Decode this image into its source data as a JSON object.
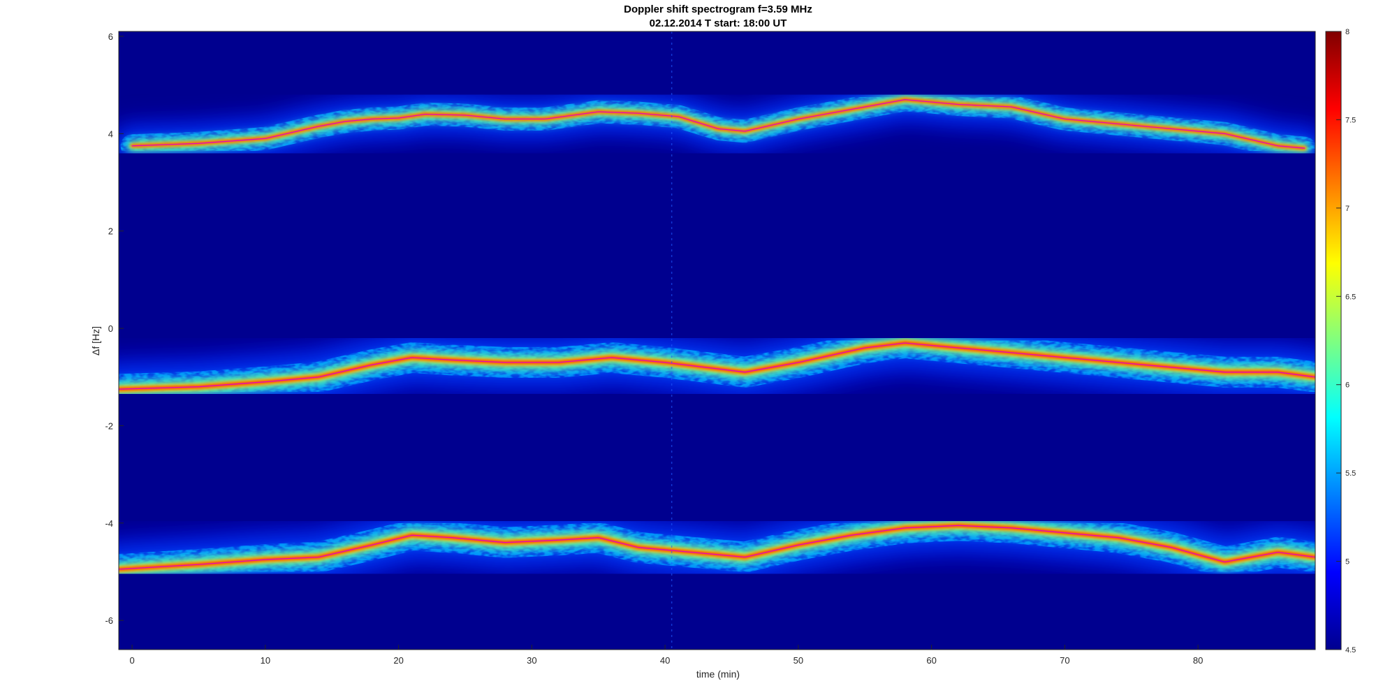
{
  "chart_data": {
    "type": "heatmap",
    "title": "Doppler shift spectrogram f=3.59 MHz",
    "subtitle": "02.12.2014   T start: 18:00 UT",
    "xlabel": "time (min)",
    "ylabel": "Δf [Hz]",
    "xlim": [
      -1,
      88.8
    ],
    "ylim": [
      -6.6,
      6.1
    ],
    "x_ticks": [
      0,
      10,
      20,
      30,
      40,
      50,
      60,
      70,
      80
    ],
    "y_ticks": [
      6,
      4,
      2,
      0,
      -2,
      -4,
      -6
    ],
    "colorbar": {
      "colormap": "jet",
      "clim": [
        4.5,
        8
      ],
      "ticks": [
        "8",
        "7.5",
        "7",
        "6.5",
        "6",
        "5.5",
        "5",
        "4.5"
      ]
    },
    "background_color": "#00008f",
    "series": [
      {
        "x": [
          0,
          5,
          10,
          14,
          16,
          18,
          20,
          22,
          25,
          28,
          31,
          35,
          38,
          41,
          44,
          46,
          50,
          54,
          58,
          62,
          66,
          70,
          74,
          78,
          82,
          86,
          88
        ],
        "y": [
          3.75,
          3.8,
          3.9,
          4.15,
          4.25,
          4.3,
          4.32,
          4.4,
          4.38,
          4.3,
          4.3,
          4.45,
          4.42,
          4.35,
          4.1,
          4.05,
          4.3,
          4.5,
          4.7,
          4.6,
          4.55,
          4.3,
          4.2,
          4.1,
          4.0,
          3.75,
          3.7
        ]
      },
      {
        "x": [
          -1,
          5,
          10,
          14,
          18,
          21,
          24,
          28,
          32,
          36,
          40,
          43,
          46,
          50,
          55,
          58,
          62,
          66,
          70,
          74,
          78,
          82,
          86,
          88.8
        ],
        "y": [
          -1.25,
          -1.2,
          -1.1,
          -1.0,
          -0.75,
          -0.6,
          -0.65,
          -0.7,
          -0.7,
          -0.6,
          -0.7,
          -0.8,
          -0.9,
          -0.7,
          -0.4,
          -0.3,
          -0.4,
          -0.5,
          -0.6,
          -0.7,
          -0.8,
          -0.9,
          -0.9,
          -1.0
        ]
      },
      {
        "x": [
          -1,
          5,
          10,
          14,
          18,
          21,
          24,
          28,
          32,
          35,
          38,
          42,
          46,
          50,
          54,
          58,
          62,
          66,
          70,
          74,
          78,
          82,
          86,
          88.8
        ],
        "y": [
          -4.95,
          -4.85,
          -4.75,
          -4.7,
          -4.45,
          -4.25,
          -4.3,
          -4.4,
          -4.35,
          -4.3,
          -4.5,
          -4.6,
          -4.7,
          -4.45,
          -4.25,
          -4.1,
          -4.05,
          -4.1,
          -4.2,
          -4.3,
          -4.5,
          -4.8,
          -4.6,
          -4.7
        ]
      }
    ]
  }
}
